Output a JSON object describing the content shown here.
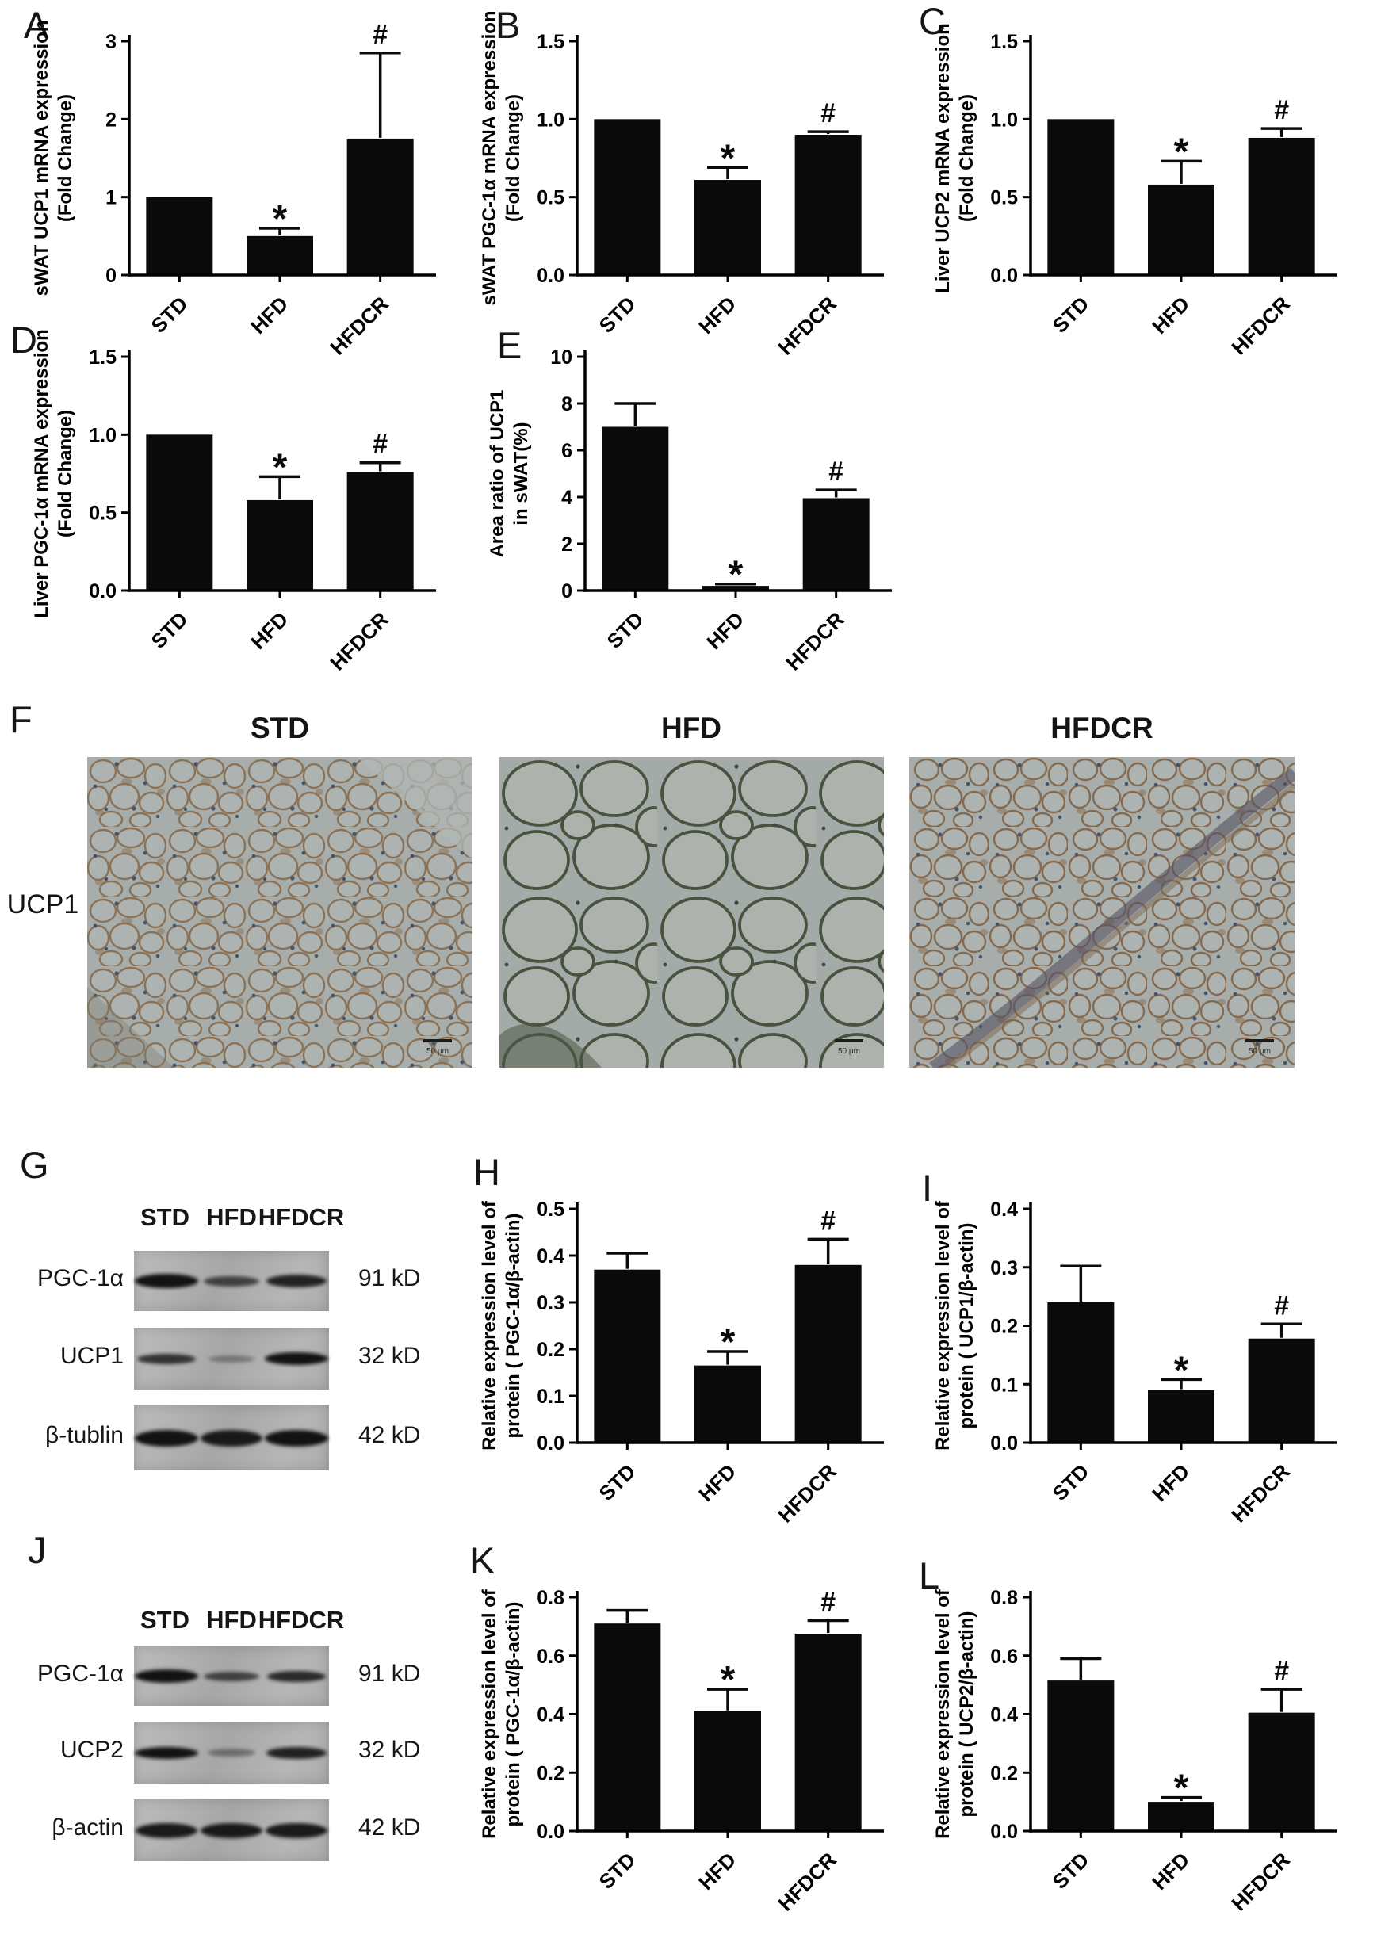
{
  "chart_data": [
    {
      "panel": "A",
      "type": "bar",
      "categories": [
        "STD",
        "HFD",
        "HFDCR"
      ],
      "values": [
        1.0,
        0.5,
        1.75
      ],
      "errors": [
        0,
        0.1,
        1.1
      ],
      "significance": [
        "",
        "*",
        "#"
      ],
      "ylabel_line1": "sWAT UCP1 mRNA expression",
      "ylabel_line2": "(Fold Change)",
      "ylim": [
        0,
        3
      ],
      "yticks": [
        0,
        1,
        2,
        3
      ],
      "ytick_labels": [
        "0",
        "1",
        "2",
        "3"
      ],
      "grid": false,
      "legend": false
    },
    {
      "panel": "B",
      "type": "bar",
      "categories": [
        "STD",
        "HFD",
        "HFDCR"
      ],
      "values": [
        1.0,
        0.61,
        0.9
      ],
      "errors": [
        0,
        0.08,
        0.02
      ],
      "significance": [
        "",
        "*",
        "#"
      ],
      "ylabel_line1": "sWAT PGC-1α mRNA expression",
      "ylabel_line2": "(Fold Change)",
      "ylim": [
        0,
        1.5
      ],
      "yticks": [
        0,
        0.5,
        1.0,
        1.5
      ],
      "ytick_labels": [
        "0.0",
        "0.5",
        "1.0",
        "1.5"
      ],
      "grid": false,
      "legend": false
    },
    {
      "panel": "C",
      "type": "bar",
      "categories": [
        "STD",
        "HFD",
        "HFDCR"
      ],
      "values": [
        1.0,
        0.58,
        0.88
      ],
      "errors": [
        0,
        0.15,
        0.06
      ],
      "significance": [
        "",
        "*",
        "#"
      ],
      "ylabel_line1": "Liver UCP2 mRNA expression",
      "ylabel_line2": "(Fold Change)",
      "ylim": [
        0,
        1.5
      ],
      "yticks": [
        0,
        0.5,
        1.0,
        1.5
      ],
      "ytick_labels": [
        "0.0",
        "0.5",
        "1.0",
        "1.5"
      ],
      "grid": false,
      "legend": false
    },
    {
      "panel": "D",
      "type": "bar",
      "categories": [
        "STD",
        "HFD",
        "HFDCR"
      ],
      "values": [
        1.0,
        0.58,
        0.76
      ],
      "errors": [
        0,
        0.15,
        0.06
      ],
      "significance": [
        "",
        "*",
        "#"
      ],
      "ylabel_line1": "Liver PGC-1α mRNA expression",
      "ylabel_line2": "(Fold Change)",
      "ylim": [
        0,
        1.5
      ],
      "yticks": [
        0,
        0.5,
        1.0,
        1.5
      ],
      "ytick_labels": [
        "0.0",
        "0.5",
        "1.0",
        "1.5"
      ],
      "grid": false,
      "legend": false
    },
    {
      "panel": "E",
      "type": "bar",
      "categories": [
        "STD",
        "HFD",
        "HFDCR"
      ],
      "values": [
        7.0,
        0.2,
        3.95
      ],
      "errors": [
        1.0,
        0.08,
        0.35
      ],
      "significance": [
        "",
        "*",
        "#"
      ],
      "ylabel_line1": "Area ratio of UCP1",
      "ylabel_line2": "in sWAT(%)",
      "ylim": [
        0,
        10
      ],
      "yticks": [
        0,
        2,
        4,
        6,
        8,
        10
      ],
      "ytick_labels": [
        "0",
        "2",
        "4",
        "6",
        "8",
        "10"
      ],
      "grid": false,
      "legend": false
    },
    {
      "panel": "H",
      "type": "bar",
      "categories": [
        "STD",
        "HFD",
        "HFDCR"
      ],
      "values": [
        0.37,
        0.165,
        0.38
      ],
      "errors": [
        0.035,
        0.03,
        0.055
      ],
      "significance": [
        "",
        "*",
        "#"
      ],
      "ylabel_line1": "Relative expression level of",
      "ylabel_line2": "protein ( PGC-1α/β-actin)",
      "ylim": [
        0,
        0.5
      ],
      "yticks": [
        0,
        0.1,
        0.2,
        0.3,
        0.4,
        0.5
      ],
      "ytick_labels": [
        "0.0",
        "0.1",
        "0.2",
        "0.3",
        "0.4",
        "0.5"
      ],
      "grid": false,
      "legend": false
    },
    {
      "panel": "I",
      "type": "bar",
      "categories": [
        "STD",
        "HFD",
        "HFDCR"
      ],
      "values": [
        0.24,
        0.09,
        0.178
      ],
      "errors": [
        0.062,
        0.018,
        0.025
      ],
      "significance": [
        "",
        "*",
        "#"
      ],
      "ylabel_line1": "Relative expression level of",
      "ylabel_line2": "protein ( UCP1/β-actin)",
      "ylim": [
        0,
        0.4
      ],
      "yticks": [
        0,
        0.1,
        0.2,
        0.3,
        0.4
      ],
      "ytick_labels": [
        "0.0",
        "0.1",
        "0.2",
        "0.3",
        "0.4"
      ],
      "grid": false,
      "legend": false
    },
    {
      "panel": "K",
      "type": "bar",
      "categories": [
        "STD",
        "HFD",
        "HFDCR"
      ],
      "values": [
        0.71,
        0.41,
        0.675
      ],
      "errors": [
        0.045,
        0.075,
        0.045
      ],
      "significance": [
        "",
        "*",
        "#"
      ],
      "ylabel_line1": "Relative expression level of",
      "ylabel_line2": "protein ( PGC-1α/β-actin)",
      "ylim": [
        0,
        0.8
      ],
      "yticks": [
        0,
        0.2,
        0.4,
        0.6,
        0.8
      ],
      "ytick_labels": [
        "0.0",
        "0.2",
        "0.4",
        "0.6",
        "0.8"
      ],
      "grid": false,
      "legend": false
    },
    {
      "panel": "L",
      "type": "bar",
      "categories": [
        "STD",
        "HFD",
        "HFDCR"
      ],
      "values": [
        0.515,
        0.1,
        0.405
      ],
      "errors": [
        0.075,
        0.015,
        0.08
      ],
      "significance": [
        "",
        "*",
        "#"
      ],
      "ylabel_line1": "Relative expression level of",
      "ylabel_line2": "protein ( UCP2/β-actin)",
      "ylim": [
        0,
        0.8
      ],
      "yticks": [
        0,
        0.2,
        0.4,
        0.6,
        0.8
      ],
      "ytick_labels": [
        "0.0",
        "0.2",
        "0.4",
        "0.6",
        "0.8"
      ],
      "grid": false,
      "legend": false
    }
  ],
  "histology": {
    "panel_label": "F",
    "row_label": "UCP1",
    "columns": [
      "STD",
      "HFD",
      "HFDCR"
    ],
    "scale_bar_label": "50 μm"
  },
  "western_blots": [
    {
      "panel_label": "G",
      "lanes": [
        "STD",
        "HFD",
        "HFDCR"
      ],
      "rows": [
        {
          "protein": "PGC-1α",
          "molecular_weight": "91 kD",
          "band_intensities": [
            1,
            0.7,
            0.9
          ]
        },
        {
          "protein": "UCP1",
          "molecular_weight": "32 kD",
          "band_intensities": [
            0.8,
            0.35,
            1
          ]
        },
        {
          "protein": "β-tublin",
          "molecular_weight": "42 kD",
          "band_intensities": [
            1,
            0.95,
            1
          ]
        }
      ]
    },
    {
      "panel_label": "J",
      "lanes": [
        "STD",
        "HFD",
        "HFDCR"
      ],
      "rows": [
        {
          "protein": "PGC-1α",
          "molecular_weight": "91 kD",
          "band_intensities": [
            1,
            0.7,
            0.85
          ]
        },
        {
          "protein": "UCP2",
          "molecular_weight": "32 kD",
          "band_intensities": [
            1,
            0.4,
            0.9
          ]
        },
        {
          "protein": "β-actin",
          "molecular_weight": "42 kD",
          "band_intensities": [
            0.95,
            0.95,
            0.95
          ]
        }
      ]
    }
  ]
}
